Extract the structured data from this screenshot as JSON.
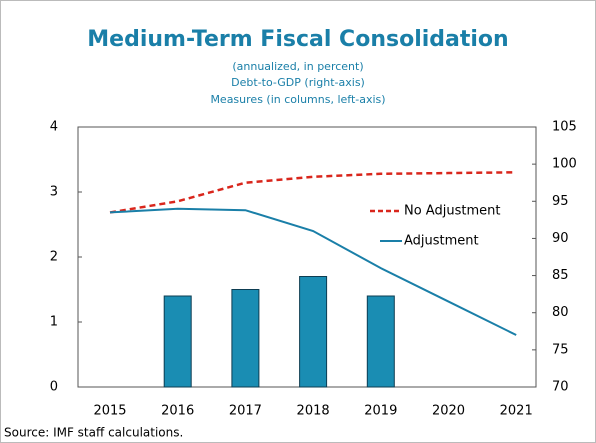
{
  "chart_data": {
    "type": "bar_line",
    "title": "Medium-Term Fiscal Consolidation",
    "subtitles": [
      "(annualized, in percent)",
      "Debt-to-GDP  (right-axis)",
      "Measures (in columns, left-axis)"
    ],
    "source": "Source: IMF staff calculations.",
    "categories": [
      "2015",
      "2016",
      "2017",
      "2018",
      "2019",
      "2020",
      "2021"
    ],
    "bar_color": "#1a8db3",
    "values": [
      null,
      1.4,
      1.5,
      1.7,
      1.4,
      null,
      null
    ],
    "series": [
      {
        "name": "No Adjustment",
        "color": "#d9261c",
        "dashed": true,
        "axis": "y2",
        "values": [
          93.5,
          95,
          97.5,
          98.3,
          98.7,
          98.8,
          98.9
        ]
      },
      {
        "name": "Adjustment",
        "color": "#1a7fa8",
        "dashed": false,
        "axis": "y2",
        "values": [
          93.5,
          94,
          93.8,
          91,
          86,
          81.5,
          77
        ]
      }
    ],
    "ylim": [
      0,
      4
    ],
    "yticks": [
      0,
      1,
      2,
      3,
      4
    ],
    "y2lim": [
      70,
      105
    ],
    "y2ticks": [
      70,
      75,
      80,
      85,
      90,
      95,
      100,
      105
    ]
  }
}
